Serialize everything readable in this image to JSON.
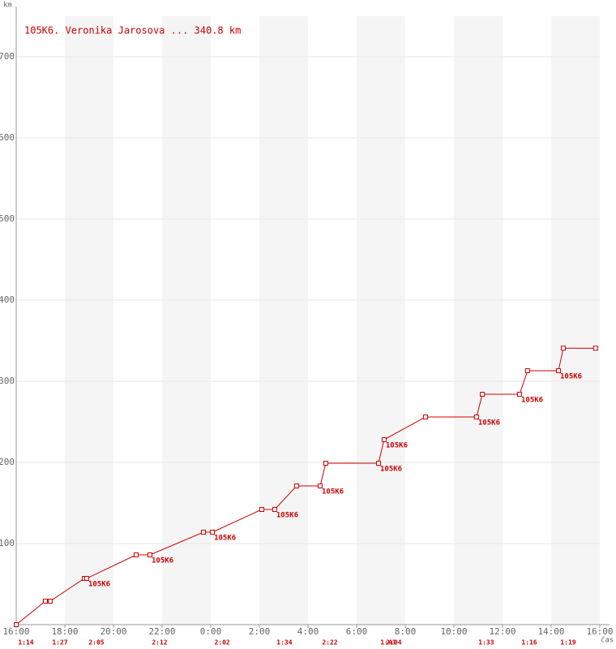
{
  "chart_data": {
    "type": "line",
    "title": "105K6. Veronika Jarosova ... 340.8 km",
    "y_label": "km",
    "x_label": "čas",
    "xlim": [
      0,
      24
    ],
    "ylim": [
      0,
      750
    ],
    "xticks": [
      {
        "value": 0,
        "label": "16:00"
      },
      {
        "value": 2,
        "label": "18:00"
      },
      {
        "value": 4,
        "label": "20:00"
      },
      {
        "value": 6,
        "label": "22:00"
      },
      {
        "value": 8,
        "label": "0:00"
      },
      {
        "value": 10,
        "label": "2:00"
      },
      {
        "value": 12,
        "label": "4:00"
      },
      {
        "value": 14,
        "label": "6:00"
      },
      {
        "value": 16,
        "label": "8:00"
      },
      {
        "value": 18,
        "label": "10:00"
      },
      {
        "value": 20,
        "label": "12:00"
      },
      {
        "value": 22,
        "label": "14:00"
      },
      {
        "value": 24,
        "label": "16:00"
      }
    ],
    "yticks": [
      100,
      200,
      300,
      400,
      500,
      600,
      700
    ],
    "grid": true,
    "series": [
      {
        "color": "#cc0000",
        "x": [
          0,
          1.2,
          1.4,
          2.8,
          2.9,
          4.93,
          5.5,
          7.7,
          8.07,
          10.1,
          10.63,
          11.53,
          12.5,
          12.73,
          14.9,
          15.13,
          16.83,
          18.93,
          19.17,
          20.7,
          21.03,
          22.3,
          22.5,
          23.83
        ],
        "values": [
          0,
          29,
          29,
          57,
          57,
          86,
          86,
          114,
          114,
          142,
          142,
          171,
          171,
          199,
          199,
          228,
          256,
          256,
          284,
          284,
          313,
          313,
          340.8,
          340.8
        ],
        "point_labels": [
          null,
          null,
          null,
          null,
          "105K6",
          null,
          "105K6",
          null,
          "105K6",
          null,
          "105K6",
          null,
          "105K6",
          null,
          "105K6",
          "105K6",
          null,
          "105K6",
          null,
          "105K6",
          null,
          "105K6",
          null,
          null
        ],
        "split_labels": [
          "1:14",
          null,
          "1:27",
          null,
          "2:05",
          null,
          "2:12",
          null,
          "2:02",
          null,
          "1:34",
          null,
          "2:22",
          null,
          "1:43",
          "2:04",
          null,
          "1:33",
          null,
          "1:16",
          null,
          "1:19",
          null,
          null
        ]
      }
    ]
  }
}
